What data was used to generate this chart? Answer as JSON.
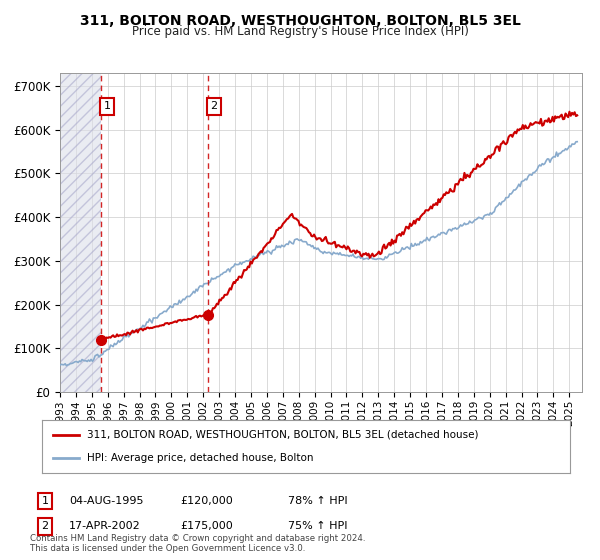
{
  "title": "311, BOLTON ROAD, WESTHOUGHTON, BOLTON, BL5 3EL",
  "subtitle": "Price paid vs. HM Land Registry's House Price Index (HPI)",
  "ylabel_ticks": [
    "£0",
    "£100K",
    "£200K",
    "£300K",
    "£400K",
    "£500K",
    "£600K",
    "£700K"
  ],
  "ytick_values": [
    0,
    100000,
    200000,
    300000,
    400000,
    500000,
    600000,
    700000
  ],
  "ylim": [
    0,
    730000
  ],
  "xlim_start": 1993.0,
  "xlim_end": 2025.8,
  "hatch_end": 1995.58,
  "sale_dates": [
    1995.58,
    2002.29
  ],
  "sale_prices": [
    120000,
    175000
  ],
  "sale_labels": [
    "1",
    "2"
  ],
  "sale_info": [
    {
      "label": "1",
      "date": "04-AUG-1995",
      "price": "£120,000",
      "hpi": "78% ↑ HPI"
    },
    {
      "label": "2",
      "date": "17-APR-2002",
      "price": "£175,000",
      "hpi": "75% ↑ HPI"
    }
  ],
  "legend_entries": [
    "311, BOLTON ROAD, WESTHOUGHTON, BOLTON, BL5 3EL (detached house)",
    "HPI: Average price, detached house, Bolton"
  ],
  "red_line_color": "#cc0000",
  "blue_line_color": "#88aacc",
  "copyright": "Contains HM Land Registry data © Crown copyright and database right 2024.\nThis data is licensed under the Open Government Licence v3.0.",
  "background_color": "#ffffff",
  "grid_color": "#cccccc",
  "xlabel_years": [
    "1993",
    "1994",
    "1995",
    "1996",
    "1997",
    "1998",
    "1999",
    "2000",
    "2001",
    "2002",
    "2003",
    "2004",
    "2005",
    "2006",
    "2007",
    "2008",
    "2009",
    "2010",
    "2011",
    "2012",
    "2013",
    "2014",
    "2015",
    "2016",
    "2017",
    "2018",
    "2019",
    "2020",
    "2021",
    "2022",
    "2023",
    "2024",
    "2025"
  ]
}
